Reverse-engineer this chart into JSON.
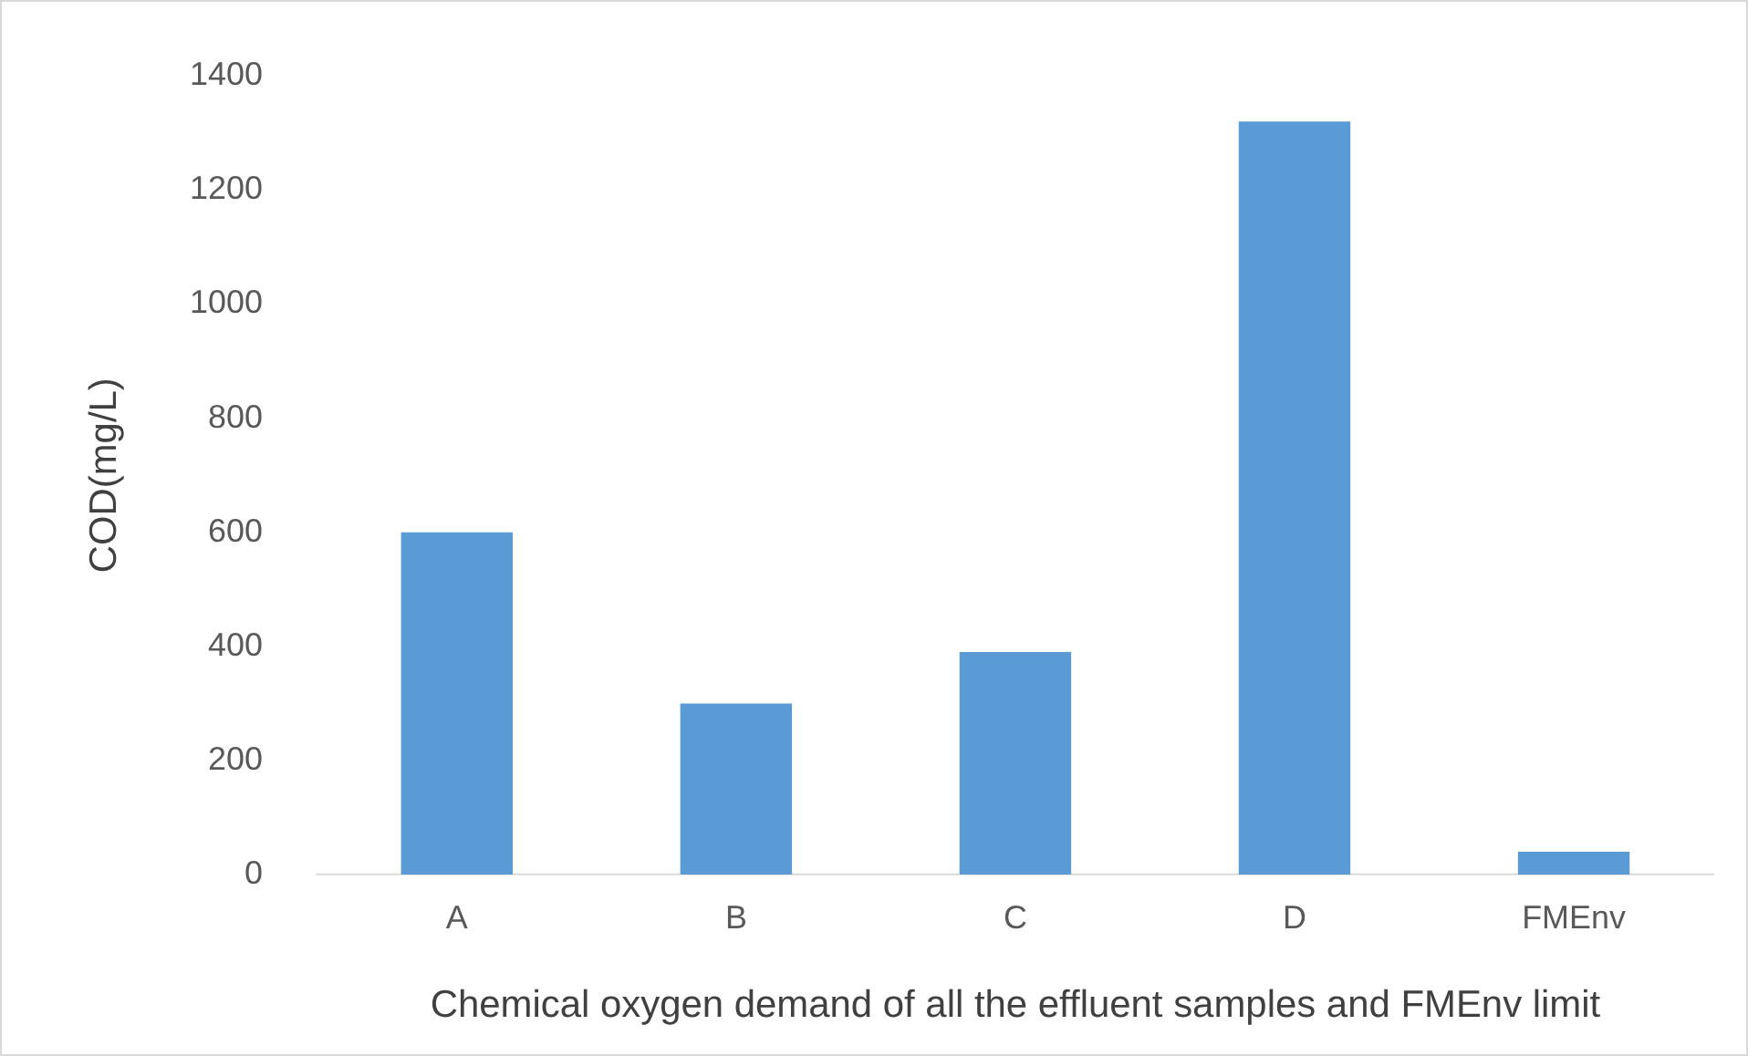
{
  "chart_data": {
    "type": "bar",
    "xlabel": "Chemical oxygen demand of all the effluent samples and FMEnv limit",
    "ylabel": "COD(mg/L)",
    "categories": [
      "A",
      "B",
      "C",
      "D",
      "FMEnv"
    ],
    "values": [
      600,
      300,
      390,
      1320,
      40
    ],
    "color": "#5b9bd5",
    "ylim": [
      0,
      1400
    ],
    "yticks": [
      0,
      200,
      400,
      600,
      800,
      1000,
      1200,
      1400
    ],
    "grid": false,
    "legend": false
  }
}
